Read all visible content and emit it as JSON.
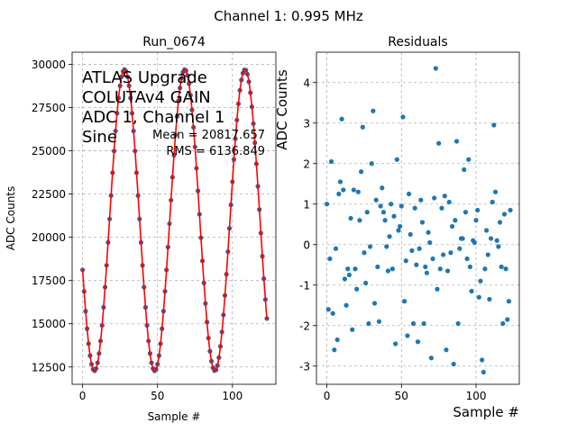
{
  "figure": {
    "suptitle": "Channel 1: 0.995 MHz"
  },
  "chart_data": [
    {
      "type": "line",
      "title": "Run_0674",
      "xlabel": "Sample #",
      "ylabel": "ADC Counts",
      "xlim": [
        -7,
        129
      ],
      "ylim": [
        11500,
        30700
      ],
      "xticks": [
        0,
        50,
        100
      ],
      "yticks": [
        12500,
        15000,
        17500,
        20000,
        22500,
        25000,
        27500,
        30000
      ],
      "grid": true,
      "annotation_lines": [
        "ATLAS Upgrade",
        "COLUTAv4 GAIN",
        "ADC 1, Channel 1",
        "Sine"
      ],
      "stats": [
        "Mean = 20817.657",
        "RMS = 6136.849"
      ],
      "sine_fit": {
        "offset": 20990,
        "amplitude": 8710,
        "period_samples": 40.2,
        "phase_sample_of_peak": 28,
        "n_samples": 124
      },
      "series": [
        {
          "style": "markers",
          "color": "#4a5a8c"
        },
        {
          "style": "line",
          "color": "#ff0000"
        }
      ]
    },
    {
      "type": "scatter",
      "title": "Residuals",
      "xlabel": "Sample #",
      "ylabel": "ADC Counts",
      "xlim": [
        -7,
        129
      ],
      "ylim": [
        -3.45,
        4.75
      ],
      "xticks": [
        0,
        50,
        100
      ],
      "yticks": [
        -3,
        -2,
        -1,
        0,
        1,
        2,
        3,
        4
      ],
      "grid": true,
      "color": "#1f77b4",
      "residuals": [
        1.0,
        -1.6,
        -0.35,
        2.05,
        -1.7,
        -2.6,
        -0.1,
        -2.35,
        1.25,
        1.55,
        3.1,
        1.35,
        -0.85,
        -1.5,
        -0.6,
        -0.75,
        0.65,
        -2.1,
        1.35,
        -0.6,
        -1.1,
        1.3,
        0.6,
        1.8,
        2.9,
        -0.2,
        -0.95,
        0.8,
        -1.95,
        -0.05,
        2.0,
        3.3,
        -1.45,
        1.1,
        -0.55,
        -1.9,
        0.95,
        1.4,
        0.8,
        0.6,
        -0.05,
        -0.65,
        0.2,
        1.0,
        -0.6,
        0.7,
        -2.45,
        2.1,
        0.35,
        0.45,
        0.95,
        3.15,
        -1.4,
        -0.4,
        -2.25,
        1.25,
        0.25,
        -0.15,
        -1.95,
        0.9,
        -0.5,
        -2.4,
        -0.1,
        1.1,
        0.55,
        -1.95,
        -0.55,
        -0.7,
        0.3,
        0.05,
        -2.8,
        -0.35,
        1.15,
        4.35,
        -1.1,
        2.5,
        -0.6,
        0.9,
        -0.25,
        1.2,
        -2.6,
        -0.65,
        1.05,
        -0.2,
        0.45,
        -2.95,
        0.6,
        2.55,
        -1.95,
        -0.1,
        0.15,
        0.15,
        1.85,
        0.8,
        -0.35,
        2.1,
        -0.55,
        -1.15,
        0.1,
        0.05,
        0.6,
        0.85,
        -1.3,
        -0.9,
        -2.85,
        -3.15,
        -0.6,
        0.35,
        -0.25,
        -1.35,
        0.15,
        1.05,
        2.95,
        1.3,
        0.1,
        -0.05,
        0.55,
        -0.55,
        -1.95,
        0.75,
        -0.6,
        -1.85,
        -1.4,
        0.85
      ]
    }
  ]
}
